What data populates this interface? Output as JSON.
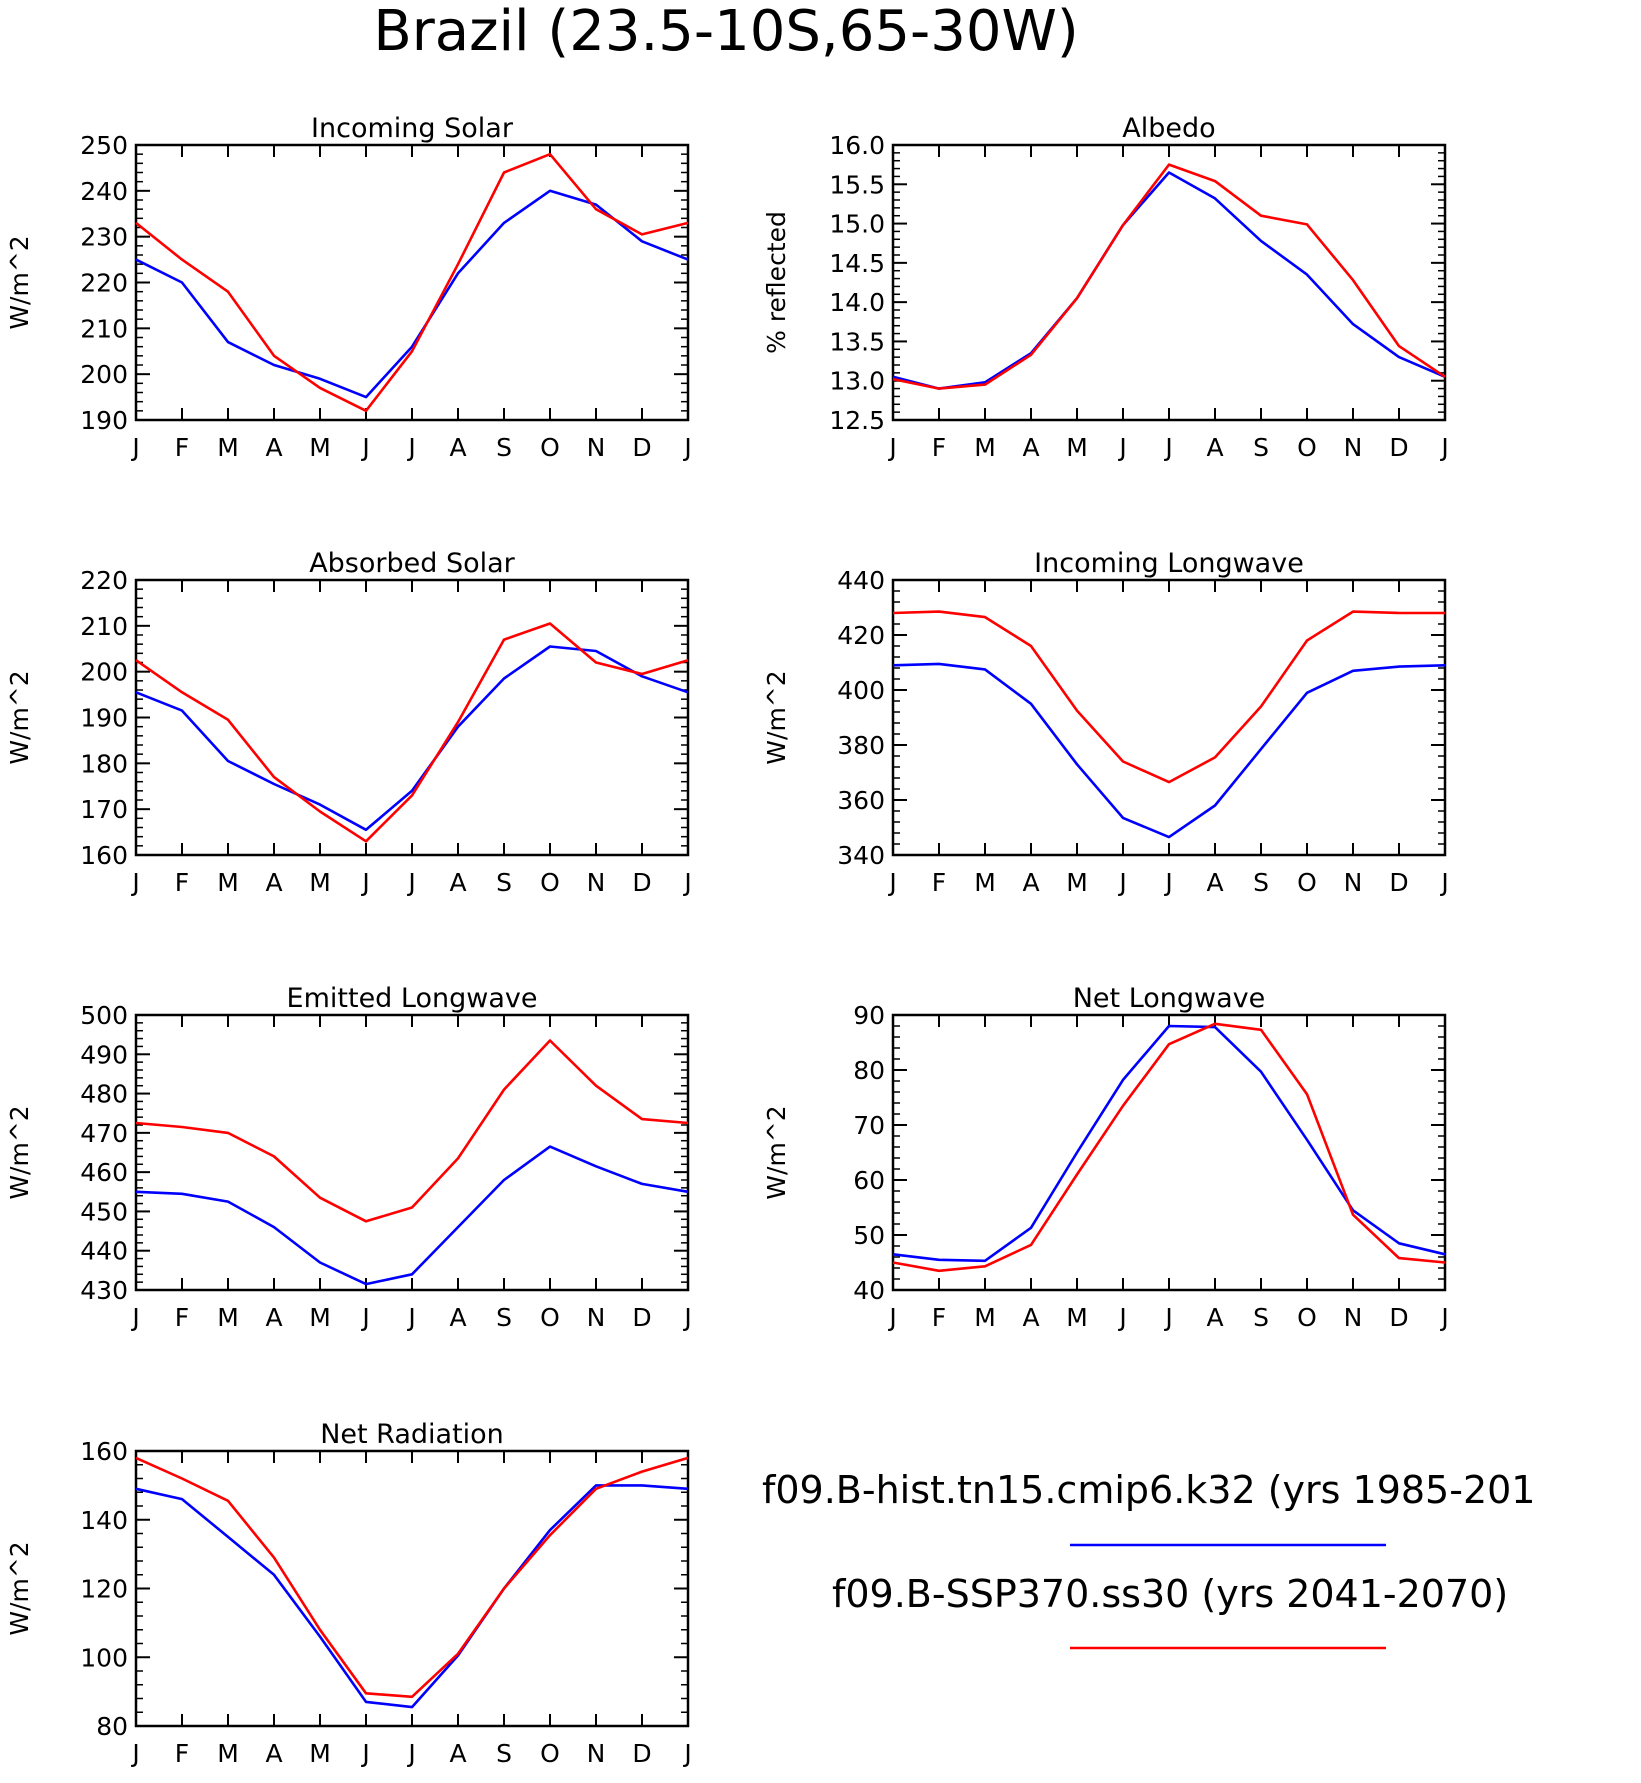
{
  "title": "Brazil (23.5-10S,65-30W)",
  "colors": {
    "hist": "#0000ff",
    "ssp": "#ff0000",
    "axis": "#000000"
  },
  "legend": {
    "hist_label": "f09.B-hist.tn15.cmip6.k32 (yrs 1985-201",
    "ssp_label": "f09.B-SSP370.ss30 (yrs 2041-2070)"
  },
  "chart_data": [
    {
      "type": "line",
      "title": "Incoming Solar",
      "ylabel": "W/m^2",
      "categories": [
        "J",
        "F",
        "M",
        "A",
        "M",
        "J",
        "J",
        "A",
        "S",
        "O",
        "N",
        "D",
        "J"
      ],
      "ylim": [
        190,
        250
      ],
      "yticks": [
        190,
        200,
        210,
        220,
        230,
        240,
        250
      ],
      "ytick_labels": [
        "190",
        "200",
        "210",
        "220",
        "230",
        "240",
        "250"
      ],
      "series": [
        {
          "key": "hist",
          "values": [
            225,
            220,
            207,
            202,
            199,
            195,
            206,
            222,
            233,
            240,
            237,
            229,
            225
          ]
        },
        {
          "key": "ssp",
          "values": [
            233,
            225,
            218,
            204,
            197,
            192,
            205,
            224,
            244,
            248,
            236,
            230.5,
            233
          ]
        }
      ]
    },
    {
      "type": "line",
      "title": "Albedo",
      "ylabel": "% reflected",
      "categories": [
        "J",
        "F",
        "M",
        "A",
        "M",
        "J",
        "J",
        "A",
        "S",
        "O",
        "N",
        "D",
        "J"
      ],
      "ylim": [
        12.5,
        16.0
      ],
      "yticks": [
        12.5,
        13.0,
        13.5,
        14.0,
        14.5,
        15.0,
        15.5,
        16.0
      ],
      "ytick_labels": [
        "12.5",
        "13.0",
        "13.5",
        "14.0",
        "14.5",
        "15.0",
        "15.5",
        "16.0"
      ],
      "series": [
        {
          "key": "hist",
          "values": [
            13.05,
            12.9,
            12.98,
            13.35,
            14.05,
            14.98,
            15.65,
            15.32,
            14.78,
            14.35,
            13.72,
            13.3,
            13.05
          ]
        },
        {
          "key": "ssp",
          "values": [
            13.02,
            12.9,
            12.95,
            13.33,
            14.05,
            14.98,
            15.75,
            15.54,
            15.1,
            14.99,
            14.28,
            13.44,
            13.05
          ]
        }
      ]
    },
    {
      "type": "line",
      "title": "Absorbed Solar",
      "ylabel": "W/m^2",
      "categories": [
        "J",
        "F",
        "M",
        "A",
        "M",
        "J",
        "J",
        "A",
        "S",
        "O",
        "N",
        "D",
        "J"
      ],
      "ylim": [
        160,
        220
      ],
      "yticks": [
        160,
        170,
        180,
        190,
        200,
        210,
        220
      ],
      "ytick_labels": [
        "160",
        "170",
        "180",
        "190",
        "200",
        "210",
        "220"
      ],
      "series": [
        {
          "key": "hist",
          "values": [
            195.5,
            191.5,
            180.5,
            175.5,
            171,
            165.5,
            174,
            188,
            198.5,
            205.5,
            204.5,
            199,
            195.5
          ]
        },
        {
          "key": "ssp",
          "values": [
            202.5,
            195.5,
            189.5,
            177,
            169.5,
            163,
            173,
            189,
            207,
            210.5,
            202,
            199.5,
            202.5
          ]
        }
      ]
    },
    {
      "type": "line",
      "title": "Incoming Longwave",
      "ylabel": "W/m^2",
      "categories": [
        "J",
        "F",
        "M",
        "A",
        "M",
        "J",
        "J",
        "A",
        "S",
        "O",
        "N",
        "D",
        "J"
      ],
      "ylim": [
        340,
        440
      ],
      "yticks": [
        340,
        360,
        380,
        400,
        420,
        440
      ],
      "ytick_labels": [
        "340",
        "360",
        "380",
        "400",
        "420",
        "440"
      ],
      "series": [
        {
          "key": "hist",
          "values": [
            409,
            409.5,
            407.5,
            395,
            373,
            353.5,
            346.5,
            358,
            378.5,
            399,
            407,
            408.5,
            409
          ]
        },
        {
          "key": "ssp",
          "values": [
            428,
            428.5,
            426.5,
            416,
            392.5,
            374,
            366.5,
            375.5,
            394,
            418,
            428.5,
            428,
            428
          ]
        }
      ]
    },
    {
      "type": "line",
      "title": "Emitted Longwave",
      "ylabel": "W/m^2",
      "categories": [
        "J",
        "F",
        "M",
        "A",
        "M",
        "J",
        "J",
        "A",
        "S",
        "O",
        "N",
        "D",
        "J"
      ],
      "ylim": [
        430,
        500
      ],
      "yticks": [
        430,
        440,
        450,
        460,
        470,
        480,
        490,
        500
      ],
      "ytick_labels": [
        "430",
        "440",
        "450",
        "460",
        "470",
        "480",
        "490",
        "500"
      ],
      "series": [
        {
          "key": "hist",
          "values": [
            455,
            454.5,
            452.5,
            446,
            437,
            431.5,
            434,
            446,
            458,
            466.5,
            461.5,
            457,
            455
          ]
        },
        {
          "key": "ssp",
          "values": [
            472.5,
            471.5,
            470,
            464,
            453.5,
            447.5,
            451,
            463.5,
            481,
            493.5,
            482,
            473.5,
            472.5
          ]
        }
      ]
    },
    {
      "type": "line",
      "title": "Net Longwave",
      "ylabel": "W/m^2",
      "categories": [
        "J",
        "F",
        "M",
        "A",
        "M",
        "J",
        "J",
        "A",
        "S",
        "O",
        "N",
        "D",
        "J"
      ],
      "ylim": [
        40,
        90
      ],
      "yticks": [
        40,
        50,
        60,
        70,
        80,
        90
      ],
      "ytick_labels": [
        "40",
        "50",
        "60",
        "70",
        "80",
        "90"
      ],
      "series": [
        {
          "key": "hist",
          "values": [
            46.5,
            45.5,
            45.3,
            51.3,
            65,
            78.2,
            88,
            87.8,
            79.7,
            67.3,
            54.5,
            48.5,
            46.5
          ]
        },
        {
          "key": "ssp",
          "values": [
            45,
            43.5,
            44.3,
            48.2,
            61,
            73.5,
            84.7,
            88.4,
            87.3,
            75.6,
            53.7,
            45.8,
            45
          ]
        }
      ]
    },
    {
      "type": "line",
      "title": "Net Radiation",
      "ylabel": "W/m^2",
      "categories": [
        "J",
        "F",
        "M",
        "A",
        "M",
        "J",
        "J",
        "A",
        "S",
        "O",
        "N",
        "D",
        "J"
      ],
      "ylim": [
        80,
        160
      ],
      "yticks": [
        80,
        100,
        120,
        140,
        160
      ],
      "ytick_labels": [
        "80",
        "100",
        "120",
        "140",
        "160"
      ],
      "series": [
        {
          "key": "hist",
          "values": [
            149,
            146,
            135,
            124,
            106,
            87,
            85.5,
            100.5,
            120,
            137,
            150,
            150,
            149
          ]
        },
        {
          "key": "ssp",
          "values": [
            158,
            152,
            145.5,
            129,
            108,
            89.5,
            88.5,
            101,
            120,
            135.5,
            149,
            154,
            158
          ]
        }
      ]
    }
  ]
}
